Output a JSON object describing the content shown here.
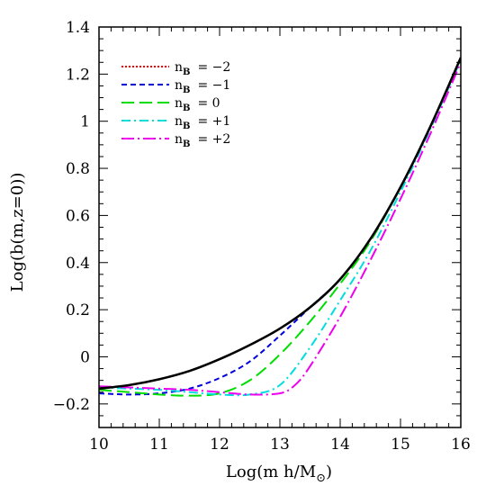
{
  "chart_data": {
    "type": "line",
    "xlabel": "Log(m h/M",
    "xlabel_sub": "⊙",
    "xlabel_close": ")",
    "ylabel": "Log(b(m,z=0))",
    "xlim": [
      10,
      16
    ],
    "ylim": [
      -0.3,
      1.4
    ],
    "xticks": [
      10,
      11,
      12,
      13,
      14,
      15,
      16
    ],
    "xtick_labels": [
      "10",
      "11",
      "12",
      "13",
      "14",
      "15",
      "16"
    ],
    "yticks": [
      -0.2,
      0,
      0.2,
      0.4,
      0.6,
      0.8,
      1,
      1.2,
      1.4
    ],
    "ytick_labels": [
      "−0.2",
      "0",
      "0.2",
      "0.4",
      "0.6",
      "0.8",
      "1",
      "1.2",
      "1.4"
    ],
    "legend_placement": "top-left",
    "legend_symbol": "n",
    "legend_sub": "B",
    "reference_line": {
      "color": "#000000",
      "x": [
        10,
        10.5,
        11,
        11.5,
        12,
        12.5,
        13,
        13.5,
        14,
        14.5,
        15,
        15.5,
        16
      ],
      "y": [
        -0.135,
        -0.12,
        -0.095,
        -0.06,
        -0.01,
        0.05,
        0.12,
        0.21,
        0.33,
        0.5,
        0.72,
        0.98,
        1.27
      ]
    },
    "series": [
      {
        "name": "= −2",
        "color": "#ff0000",
        "dash": "2,2",
        "x": [
          10,
          10.5,
          11,
          11.5,
          12,
          12.5,
          13,
          13.5,
          14,
          14.5,
          15,
          15.5,
          16
        ],
        "y": [
          -0.135,
          -0.12,
          -0.095,
          -0.06,
          -0.01,
          0.05,
          0.12,
          0.21,
          0.33,
          0.5,
          0.72,
          0.98,
          1.27
        ]
      },
      {
        "name": "= −1",
        "color": "#0000dd",
        "dash": "6,4",
        "x": [
          10,
          10.5,
          11,
          11.5,
          12,
          12.5,
          13,
          13.5,
          14,
          14.5,
          15,
          15.5,
          16
        ],
        "y": [
          -0.155,
          -0.16,
          -0.155,
          -0.135,
          -0.09,
          -0.02,
          0.09,
          0.21,
          0.33,
          0.5,
          0.72,
          0.98,
          1.27
        ]
      },
      {
        "name": "= 0",
        "color": "#00dd00",
        "dash": "14,6",
        "x": [
          10,
          10.5,
          11,
          11.5,
          12,
          12.5,
          13,
          13.5,
          14,
          14.5,
          15,
          15.5,
          16
        ],
        "y": [
          -0.14,
          -0.15,
          -0.16,
          -0.165,
          -0.155,
          -0.1,
          0.01,
          0.15,
          0.31,
          0.49,
          0.72,
          0.98,
          1.27
        ]
      },
      {
        "name": "= +1",
        "color": "#00dddd",
        "dash": "10,4,2,4",
        "x": [
          10,
          10.5,
          11,
          11.5,
          12,
          12.5,
          13,
          13.5,
          14,
          14.5,
          15,
          15.5,
          16
        ],
        "y": [
          -0.13,
          -0.135,
          -0.14,
          -0.15,
          -0.16,
          -0.16,
          -0.12,
          0.04,
          0.24,
          0.45,
          0.7,
          0.97,
          1.26
        ]
      },
      {
        "name": "= +2",
        "color": "#ee00ee",
        "dash": "14,4,2,4",
        "x": [
          10,
          10.5,
          11,
          11.5,
          12,
          12.5,
          13,
          13.25,
          13.5,
          14,
          14.5,
          15,
          15.5,
          16
        ],
        "y": [
          -0.125,
          -0.13,
          -0.135,
          -0.14,
          -0.15,
          -0.16,
          -0.155,
          -0.12,
          -0.04,
          0.17,
          0.41,
          0.67,
          0.95,
          1.25
        ]
      }
    ]
  }
}
